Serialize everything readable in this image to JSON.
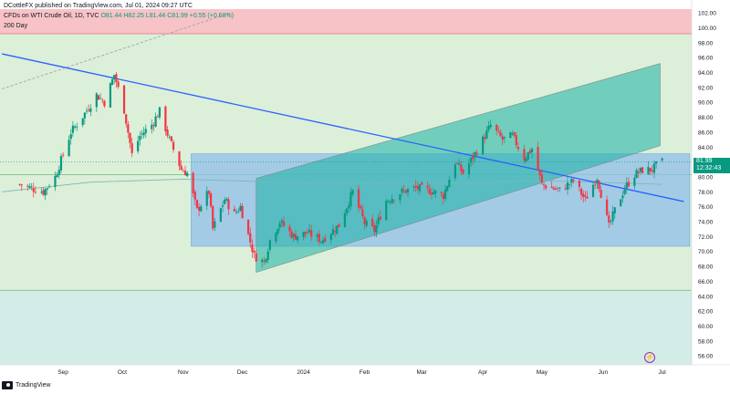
{
  "header": {
    "publisher_line": "DCottleFX published on TradingView.com, Jul 01, 2024 09:27 UTC",
    "instrument": "CFDs on WTI Crude Oil, 1D, TVC",
    "ohlc": "O81.44 H82.25 L81.44 C81.99 +0.55 (+0.68%)",
    "indicator": "200 Day"
  },
  "price_label": {
    "price": "81.99",
    "countdown": "12:32:43"
  },
  "footer": {
    "brand": "TradingView"
  },
  "colors": {
    "up": "#089981",
    "down": "#f23645",
    "trendline": "#2962ff",
    "channel_fill": "#1ab3a6",
    "range_box": "#90bfe8",
    "top_zone": "#f7c3c6",
    "mid_zone": "#dcefd9",
    "bottom_zone": "#d3ece7"
  },
  "chart_data": {
    "type": "candlestick",
    "timeframe": "1D",
    "x_tick_labels": [
      "Sep",
      "Oct",
      "Nov",
      "Dec",
      "2024",
      "Feb",
      "Mar",
      "Apr",
      "May",
      "Jun",
      "Jul"
    ],
    "y_tick_labels": [
      "56.00",
      "58.00",
      "60.00",
      "62.00",
      "64.00",
      "66.00",
      "68.00",
      "70.00",
      "72.00",
      "74.00",
      "76.00",
      "78.00",
      "80.00",
      "82.00",
      "84.00",
      "86.00",
      "88.00",
      "90.00",
      "92.00",
      "94.00",
      "96.00",
      "98.00",
      "100.00",
      "102.00"
    ],
    "ylim": [
      54.8,
      102.5
    ],
    "last_price": 81.99,
    "close_path": [
      [
        "2023-08-10",
        79
      ],
      [
        "2023-08-22",
        78
      ],
      [
        "2023-08-28",
        80
      ],
      [
        "2023-09-05",
        86
      ],
      [
        "2023-09-12",
        88.5
      ],
      [
        "2023-09-18",
        91
      ],
      [
        "2023-09-22",
        90
      ],
      [
        "2023-09-27",
        93.7
      ],
      [
        "2023-10-02",
        89
      ],
      [
        "2023-10-06",
        83
      ],
      [
        "2023-10-10",
        85.5
      ],
      [
        "2023-10-16",
        87
      ],
      [
        "2023-10-20",
        88.8
      ],
      [
        "2023-10-25",
        85
      ],
      [
        "2023-10-31",
        81
      ],
      [
        "2023-11-03",
        80.5
      ],
      [
        "2023-11-08",
        75.5
      ],
      [
        "2023-11-14",
        78
      ],
      [
        "2023-11-16",
        73
      ],
      [
        "2023-11-22",
        77
      ],
      [
        "2023-11-27",
        75
      ],
      [
        "2023-11-30",
        76
      ],
      [
        "2023-12-07",
        69.4
      ],
      [
        "2023-12-12",
        68.6
      ],
      [
        "2023-12-15",
        71.5
      ],
      [
        "2023-12-20",
        74
      ],
      [
        "2023-12-27",
        72
      ],
      [
        "2024-01-03",
        72.5
      ],
      [
        "2024-01-10",
        71.5
      ],
      [
        "2024-01-19",
        73.5
      ],
      [
        "2024-01-26",
        78
      ],
      [
        "2024-02-01",
        73.8
      ],
      [
        "2024-02-06",
        72.8
      ],
      [
        "2024-02-12",
        76.8
      ],
      [
        "2024-02-20",
        78
      ],
      [
        "2024-02-27",
        78.5
      ],
      [
        "2024-03-05",
        78.2
      ],
      [
        "2024-03-12",
        77.5
      ],
      [
        "2024-03-18",
        82
      ],
      [
        "2024-03-22",
        80.5
      ],
      [
        "2024-03-28",
        83.1
      ],
      [
        "2024-04-05",
        86.9
      ],
      [
        "2024-04-11",
        85
      ],
      [
        "2024-04-16",
        85.5
      ],
      [
        "2024-04-22",
        82.5
      ],
      [
        "2024-04-26",
        83.8
      ],
      [
        "2024-05-01",
        79
      ],
      [
        "2024-05-06",
        78.5
      ],
      [
        "2024-05-10",
        78.2
      ],
      [
        "2024-05-17",
        79.5
      ],
      [
        "2024-05-23",
        76.9
      ],
      [
        "2024-05-29",
        80
      ],
      [
        "2024-06-04",
        73.3
      ],
      [
        "2024-06-07",
        75.5
      ],
      [
        "2024-06-12",
        78.5
      ],
      [
        "2024-06-17",
        80.3
      ],
      [
        "2024-06-21",
        80.9
      ],
      [
        "2024-06-26",
        81
      ],
      [
        "2024-06-28",
        81.5
      ],
      [
        "2024-07-01",
        81.99
      ]
    ],
    "trendline": {
      "from": [
        "2023-08-01",
        96.5
      ],
      "to": [
        "2024-07-12",
        76.7
      ]
    },
    "dashed_line": {
      "from": [
        "2023-08-01",
        91.8
      ],
      "to": [
        "2023-11-25",
        102
      ]
    },
    "channel": {
      "lower": {
        "from": [
          "2023-12-08",
          67.2
        ],
        "to": [
          "2024-06-30",
          84.2
        ]
      },
      "upper": {
        "from": [
          "2023-12-08",
          79.8
        ],
        "to": [
          "2024-06-30",
          95.2
        ]
      }
    },
    "range_box": {
      "from": "2023-11-05",
      "to": "2024-07-15",
      "bottom": 70.7,
      "top": 83.1
    },
    "ma_200": [
      [
        "2023-08-01",
        78
      ],
      [
        "2023-09-15",
        79.3
      ],
      [
        "2023-11-01",
        79.7
      ],
      [
        "2024-01-01",
        79.2
      ],
      [
        "2024-03-01",
        79
      ],
      [
        "2024-05-01",
        79.5
      ],
      [
        "2024-07-01",
        79
      ]
    ],
    "horizontal_levels": [
      80.3,
      64.8
    ],
    "zones": [
      {
        "from": 99.2,
        "to": 102.5,
        "name": "top"
      },
      {
        "from": 64.8,
        "to": 99.2,
        "name": "mid"
      },
      {
        "from": 54.8,
        "to": 64.8,
        "name": "bottom"
      }
    ]
  }
}
